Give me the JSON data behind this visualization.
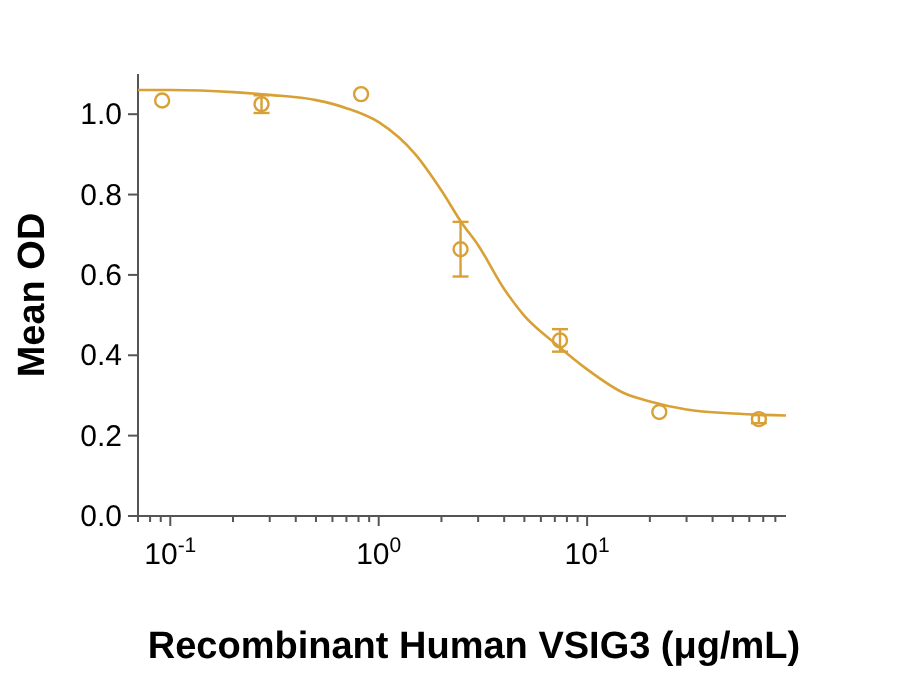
{
  "chart_data": {
    "type": "scatter",
    "xlabel": "Recombinant Human VSIG3 (μg/mL)",
    "ylabel": "Mean OD",
    "log": "x",
    "grid": false,
    "xlim": [
      0.07,
      90
    ],
    "ylim": [
      0,
      1.1
    ],
    "xticks": [
      {
        "value": 0.07,
        "label": null
      },
      {
        "value": 0.08,
        "label": null
      },
      {
        "value": 0.09,
        "label": null
      },
      {
        "value": 0.1,
        "label": "10$^{-1}$"
      },
      {
        "value": 0.2,
        "label": null
      },
      {
        "value": 0.3,
        "label": null
      },
      {
        "value": 0.4,
        "label": null
      },
      {
        "value": 0.5,
        "label": null
      },
      {
        "value": 0.6,
        "label": null
      },
      {
        "value": 0.7,
        "label": null
      },
      {
        "value": 0.8,
        "label": null
      },
      {
        "value": 0.9,
        "label": null
      },
      {
        "value": 1,
        "label": "10$^{0}$"
      },
      {
        "value": 2,
        "label": null
      },
      {
        "value": 3,
        "label": null
      },
      {
        "value": 4,
        "label": null
      },
      {
        "value": 5,
        "label": null
      },
      {
        "value": 6,
        "label": null
      },
      {
        "value": 7,
        "label": null
      },
      {
        "value": 8,
        "label": null
      },
      {
        "value": 9,
        "label": null
      },
      {
        "value": 10,
        "label": "10$^{1}$"
      },
      {
        "value": 20,
        "label": null
      },
      {
        "value": 30,
        "label": null
      },
      {
        "value": 40,
        "label": null
      },
      {
        "value": 50,
        "label": null
      },
      {
        "value": 60,
        "label": null
      },
      {
        "value": 70,
        "label": null
      },
      {
        "value": 80,
        "label": null
      }
    ],
    "yticks": [
      {
        "value": 0,
        "label": "0.0"
      },
      {
        "value": 0.2,
        "label": "0.2"
      },
      {
        "value": 0.4,
        "label": "0.4"
      },
      {
        "value": 0.6,
        "label": "0.6"
      },
      {
        "value": 0.8,
        "label": "0.8"
      },
      {
        "value": 1,
        "label": "1.0"
      }
    ],
    "series": [
      {
        "color": "#d9a035",
        "marker": "circle",
        "x": [
          0.0914,
          0.274,
          0.823,
          2.47,
          7.41,
          22.2,
          66.7
        ],
        "values": [
          1.034,
          1.025,
          1.05,
          0.664,
          0.437,
          0.259,
          0.241
        ],
        "errors": [
          null,
          0.022,
          null,
          0.068,
          0.028,
          null,
          0.01
        ]
      },
      {
        "type": "line",
        "color": "#d9a035",
        "marker": "none",
        "line_style": "solid",
        "x": [
          0.07,
          0.1,
          0.2,
          0.3,
          0.5,
          0.7,
          1,
          1.5,
          2,
          2.5,
          3,
          4,
          5,
          7,
          10,
          15,
          20,
          30,
          50,
          90
        ],
        "values": [
          1.06,
          1.06,
          1.055,
          1.048,
          1.035,
          1.015,
          0.98,
          0.9,
          0.81,
          0.73,
          0.674,
          0.565,
          0.498,
          0.43,
          0.365,
          0.306,
          0.285,
          0.265,
          0.255,
          0.25
        ]
      }
    ]
  }
}
